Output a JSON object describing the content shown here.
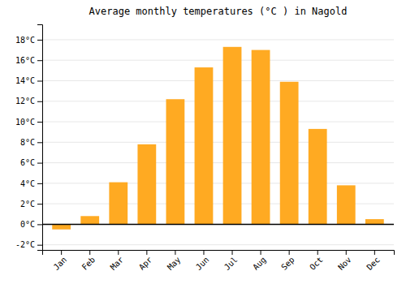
{
  "chart_data": {
    "type": "bar",
    "title": "Average monthly temperatures (°C ) in Nagold",
    "categories": [
      "Jan",
      "Feb",
      "Mar",
      "Apr",
      "May",
      "Jun",
      "Jul",
      "Aug",
      "Sep",
      "Oct",
      "Nov",
      "Dec"
    ],
    "values": [
      -0.5,
      0.8,
      4.1,
      7.8,
      12.2,
      15.3,
      17.3,
      17.0,
      13.9,
      9.3,
      3.8,
      0.5
    ],
    "color": "#FFAA22",
    "ylim": [
      -2.5,
      19.5
    ],
    "yticks": [
      {
        "value": -2,
        "label": "-2°C"
      },
      {
        "value": 0,
        "label": "0°C"
      },
      {
        "value": 2,
        "label": "2°C"
      },
      {
        "value": 4,
        "label": "4°C"
      },
      {
        "value": 6,
        "label": "6°C"
      },
      {
        "value": 8,
        "label": "8°C"
      },
      {
        "value": 10,
        "label": "10°C"
      },
      {
        "value": 12,
        "label": "12°C"
      },
      {
        "value": 14,
        "label": "14°C"
      },
      {
        "value": 16,
        "label": "16°C"
      },
      {
        "value": 18,
        "label": "18°C"
      }
    ],
    "grid": true
  }
}
